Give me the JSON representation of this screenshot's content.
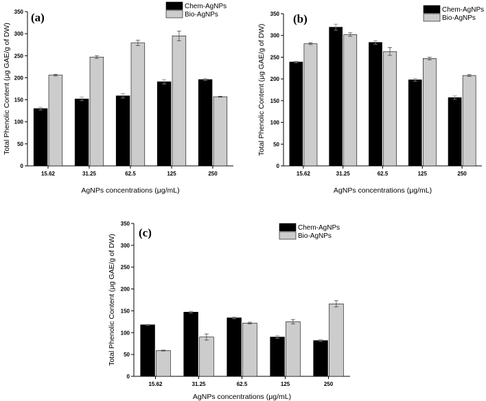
{
  "colors": {
    "chem": "#000000",
    "bio": "#cccccc"
  },
  "chart_data": [
    {
      "type": "bar",
      "panel": "(a)",
      "categories": [
        "15.62",
        "31.25",
        "62.5",
        "125",
        "250"
      ],
      "series": [
        {
          "name": "Chem-AgNPs",
          "values": [
            130,
            152,
            159,
            191,
            196
          ],
          "errors": [
            3,
            4,
            5,
            5,
            2
          ]
        },
        {
          "name": "Bio-AgNPs",
          "values": [
            206,
            247,
            279,
            295,
            157
          ],
          "errors": [
            2,
            3,
            6,
            11,
            1
          ]
        }
      ],
      "xlabel": "AgNPs concentrations (μg/mL)",
      "ylabel": "Total Phenolic Content (μg GAE/g of DW)",
      "ylim": [
        0,
        350
      ],
      "yticks": [
        0,
        50,
        100,
        150,
        200,
        250,
        300,
        350
      ],
      "legend": "top-right"
    },
    {
      "type": "bar",
      "panel": "(b)",
      "categories": [
        "15.62",
        "31.25",
        "62.5",
        "125",
        "250"
      ],
      "series": [
        {
          "name": "Chem-AgNPs",
          "values": [
            239,
            319,
            284,
            198,
            157
          ],
          "errors": [
            2,
            7,
            4,
            3,
            4
          ]
        },
        {
          "name": "Bio-AgNPs",
          "values": [
            281,
            302,
            263,
            247,
            208
          ],
          "errors": [
            2,
            4,
            9,
            3,
            2
          ]
        }
      ],
      "xlabel": "AgNPs concentrations (μg/mL)",
      "ylabel": "Total Phenolic Content (μg GAE/g of DW)",
      "ylim": [
        0,
        350
      ],
      "yticks": [
        0,
        50,
        100,
        150,
        200,
        250,
        300,
        350
      ],
      "legend": "top-right"
    },
    {
      "type": "bar",
      "panel": "(c)",
      "categories": [
        "15.62",
        "31.25",
        "62.5",
        "125",
        "250"
      ],
      "series": [
        {
          "name": "Chem-AgNPs",
          "values": [
            118,
            147,
            134,
            90,
            82
          ],
          "errors": [
            1,
            2,
            2,
            3,
            2
          ]
        },
        {
          "name": "Bio-AgNPs",
          "values": [
            59,
            90,
            122,
            125,
            166
          ],
          "errors": [
            1,
            7,
            2,
            5,
            7
          ]
        }
      ],
      "xlabel": "AgNPs concentrations (μg/mL)",
      "ylabel": "Total Phenolic Content (μg GAE/g of DW)",
      "ylim": [
        0,
        350
      ],
      "yticks": [
        0,
        50,
        100,
        150,
        200,
        250,
        300,
        350
      ],
      "legend": "top-right"
    }
  ]
}
